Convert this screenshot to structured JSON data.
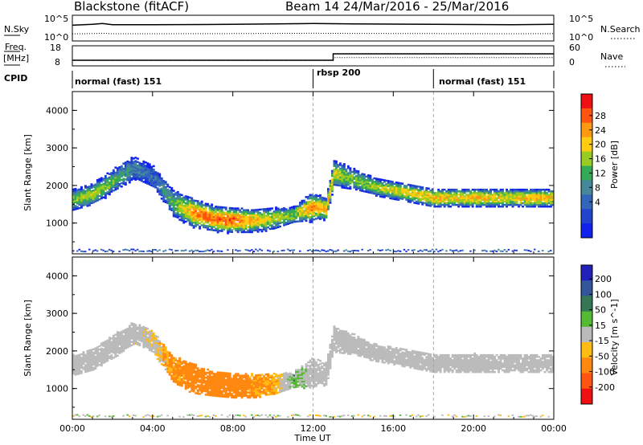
{
  "header": {
    "station": "Blackstone (fitACF)",
    "beam_date": "Beam 14  24/Mar/2016 - 25/Mar/2016"
  },
  "summary": {
    "nsky_label": "N.Sky",
    "nsearch_label": "N.Search",
    "nsky_ticks": [
      "10^5",
      "10^0"
    ],
    "nsearch_ticks": [
      "10^5",
      "10^0"
    ],
    "freq_label": "Freq.",
    "freq_unit": "[MHz]",
    "freq_ticks": [
      "18",
      "8"
    ],
    "nave_label": "Nave",
    "nave_ticks": [
      "60",
      "0"
    ],
    "cpid_label": "CPID",
    "modes": [
      {
        "label": "normal (fast) 151",
        "start": "00:00"
      },
      {
        "label": "rbsp 200",
        "start": "12:00"
      },
      {
        "label": "normal (fast) 151",
        "start": "18:00"
      }
    ]
  },
  "axes": {
    "ylabel": "Slant Range [km]",
    "yticks": [
      "4000",
      "3000",
      "2000",
      "1000"
    ],
    "xlabel": "Time UT",
    "xticks": [
      "00:00",
      "04:00",
      "08:00",
      "12:00",
      "16:00",
      "20:00",
      "00:00"
    ]
  },
  "colorbars": {
    "power": {
      "title": "Power [dB]",
      "labels": [
        "28",
        "24",
        "20",
        "16",
        "12",
        "8",
        "4"
      ],
      "colors": [
        "#ee1111",
        "#ff5511",
        "#ff9911",
        "#ffcc11",
        "#99cc22",
        "#33aa55",
        "#448899",
        "#3366bb",
        "#2244cc",
        "#1122ee"
      ]
    },
    "velocity": {
      "title": "Velocity [m s^-1]",
      "labels": [
        "200",
        "100",
        "50",
        "15",
        "-15",
        "-50",
        "-100",
        "-200"
      ],
      "colors": [
        "#2222bb",
        "#335599",
        "#337755",
        "#55bb33",
        "#bbbbbb",
        "#ffbb11",
        "#ff8811",
        "#ff5511",
        "#ee1111"
      ]
    }
  },
  "chart_data": {
    "type": "heatmap",
    "x_hours": [
      0,
      1,
      2,
      3,
      4,
      5,
      6,
      7,
      8,
      9,
      10,
      11,
      11.9,
      12.3,
      12.6,
      13,
      14,
      15,
      16,
      17,
      18,
      19,
      20,
      21,
      22,
      23,
      24
    ],
    "echo_band_center_km": [
      1600,
      1750,
      2100,
      2450,
      2200,
      1500,
      1250,
      1100,
      1050,
      1050,
      1100,
      1200,
      1400,
      1400,
      1350,
      2300,
      2150,
      1950,
      1850,
      1750,
      1650,
      1650,
      1650,
      1650,
      1650,
      1650,
      1650
    ],
    "echo_band_halfwidth_km": [
      250,
      250,
      300,
      350,
      350,
      350,
      300,
      250,
      250,
      250,
      250,
      200,
      300,
      250,
      250,
      300,
      250,
      200,
      200,
      200,
      200,
      200,
      200,
      200,
      200,
      200,
      200
    ],
    "peak_power_db": [
      18,
      20,
      16,
      12,
      10,
      16,
      26,
      28,
      28,
      24,
      20,
      18,
      26,
      24,
      24,
      20,
      18,
      20,
      22,
      22,
      24,
      22,
      24,
      22,
      22,
      24,
      22
    ],
    "velocity_ms": [
      0,
      0,
      0,
      0,
      -10,
      -40,
      -50,
      -50,
      -50,
      -40,
      -30,
      20,
      0,
      0,
      0,
      0,
      0,
      0,
      0,
      0,
      0,
      0,
      0,
      0,
      0,
      0,
      0
    ],
    "xlim_hours": [
      0,
      24
    ],
    "ylim_km": [
      180,
      4500
    ],
    "mode_changes_hours": [
      12,
      18
    ],
    "frequency_mhz": {
      "x_hours": [
        0,
        13,
        13,
        24
      ],
      "values": [
        10.5,
        10.5,
        14.5,
        14.5
      ]
    },
    "nsky_log10": {
      "x_hours": [
        0,
        1,
        1.5,
        2,
        4,
        8,
        12,
        14,
        18,
        22,
        24
      ],
      "values": [
        3.2,
        3.4,
        3.6,
        3.3,
        3.3,
        3.4,
        3.6,
        3.5,
        3.4,
        3.3,
        3.4
      ]
    },
    "nave": {
      "x_hours": [
        0,
        13,
        13,
        24
      ],
      "values": [
        14,
        14,
        25,
        25
      ]
    }
  }
}
